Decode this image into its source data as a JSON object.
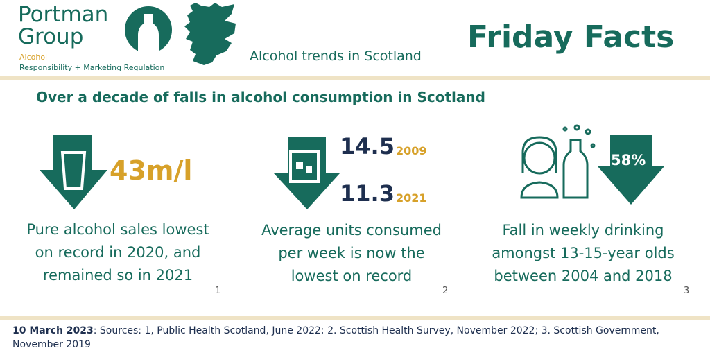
{
  "header": {
    "logo": {
      "line1": "Portman",
      "line2": "Group",
      "tagline": "Alcohol",
      "subtagline": "Responsibility + Marketing Regulation"
    },
    "subtitle": "Alcohol trends in Scotland",
    "title": "Friday Facts"
  },
  "headline": "Over a decade of falls in alcohol consumption in Scotland",
  "facts": [
    {
      "stat": "43m/l",
      "lines": [
        "Pure alcohol sales lowest",
        "on record in 2020, and",
        "remained so in 2021"
      ],
      "note": "1"
    },
    {
      "stats": [
        {
          "value": "14.5",
          "year": "2009"
        },
        {
          "value": "11.3",
          "year": "2021"
        }
      ],
      "lines": [
        "Average units consumed",
        "per week is now the",
        "lowest on record"
      ],
      "note": "2"
    },
    {
      "stat": "58%",
      "lines": [
        "Fall in weekly drinking",
        "amongst 13-15-year olds",
        "between 2004 and 2018"
      ],
      "note": "3"
    }
  ],
  "footer": {
    "date": "10 March 2023",
    "sources": ": Sources: 1, Public Health Scotland, June 2022; 2. Scottish Health Survey, November 2022; 3. Scottish Government, November 2019"
  }
}
